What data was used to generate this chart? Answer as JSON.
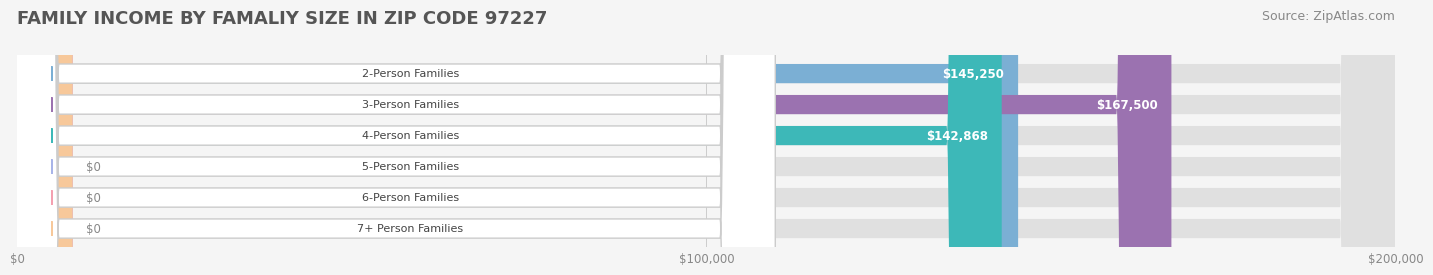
{
  "title": "FAMILY INCOME BY FAMALIY SIZE IN ZIP CODE 97227",
  "source": "Source: ZipAtlas.com",
  "categories": [
    "2-Person Families",
    "3-Person Families",
    "4-Person Families",
    "5-Person Families",
    "6-Person Families",
    "7+ Person Families"
  ],
  "values": [
    145250,
    167500,
    142868,
    0,
    0,
    0
  ],
  "bar_colors": [
    "#7bafd4",
    "#9b72b0",
    "#3db8b8",
    "#a8b4e8",
    "#f4a0b0",
    "#f7c89a"
  ],
  "label_colors": [
    "#6a9ec0",
    "#8a62a0",
    "#2da8a8",
    "#9090d0",
    "#e888a0",
    "#e8b080"
  ],
  "value_labels": [
    "$145,250",
    "$167,500",
    "$142,868",
    "$0",
    "$0",
    "$0"
  ],
  "xlim": [
    0,
    200000
  ],
  "xtick_values": [
    0,
    100000,
    200000
  ],
  "xtick_labels": [
    "$0",
    "$100,000",
    "$200,000"
  ],
  "background_color": "#f5f5f5",
  "bar_background": "#e8e8e8",
  "title_fontsize": 13,
  "source_fontsize": 9
}
